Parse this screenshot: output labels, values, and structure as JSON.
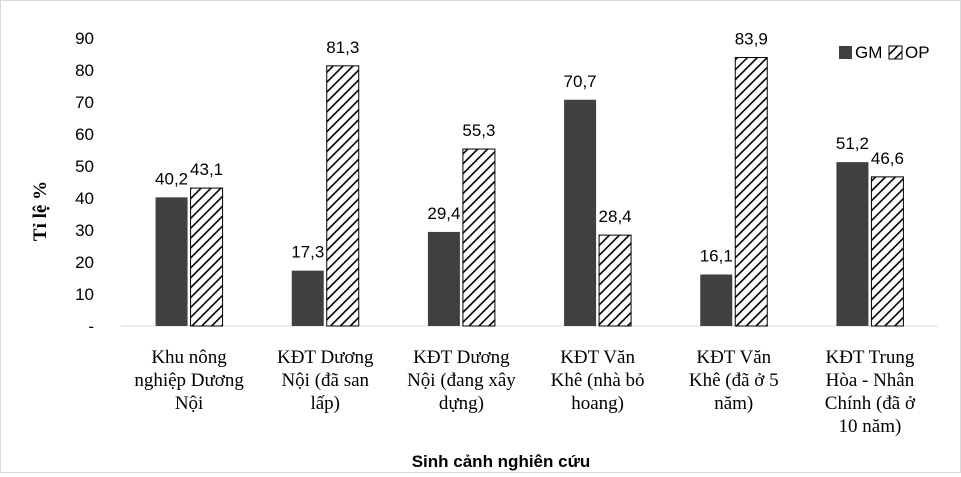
{
  "chart_data": {
    "type": "bar",
    "xlabel": "Sinh cảnh nghiên cứu",
    "ylabel": "Tỉ lệ %",
    "ylim": [
      0,
      90
    ],
    "yticks": [
      "-",
      "10",
      "20",
      "30",
      "40",
      "50",
      "60",
      "70",
      "80",
      "90"
    ],
    "grid": false,
    "legend_position": "top-right",
    "categories": [
      [
        "Khu nông",
        "nghiệp Dương",
        "Nội"
      ],
      [
        "KĐT Dương",
        "Nội (đã san",
        "lấp)"
      ],
      [
        "KĐT Dương",
        "Nội (đang xây",
        "dựng)"
      ],
      [
        "KĐT Văn",
        "Khê (nhà bỏ",
        "hoang)"
      ],
      [
        "KĐT Văn",
        "Khê (đã ở 5",
        "năm)"
      ],
      [
        "KĐT Trung",
        "Hòa - Nhân",
        "Chính (đã ở",
        "10 năm)"
      ]
    ],
    "series": [
      {
        "name": "GM",
        "values": [
          40.2,
          17.3,
          29.4,
          70.7,
          16.1,
          51.2
        ],
        "labels": [
          "40,2",
          "17,3",
          "29,4",
          "70,7",
          "16,1",
          "51,2"
        ],
        "color": "#404040",
        "pattern": "solid"
      },
      {
        "name": "OP",
        "values": [
          43.1,
          81.3,
          55.3,
          28.4,
          83.9,
          46.6
        ],
        "labels": [
          "43,1",
          "81,3",
          "55,3",
          "28,4",
          "83,9",
          "46,6"
        ],
        "color": "#000000",
        "pattern": "diagonal-hatch"
      }
    ]
  }
}
